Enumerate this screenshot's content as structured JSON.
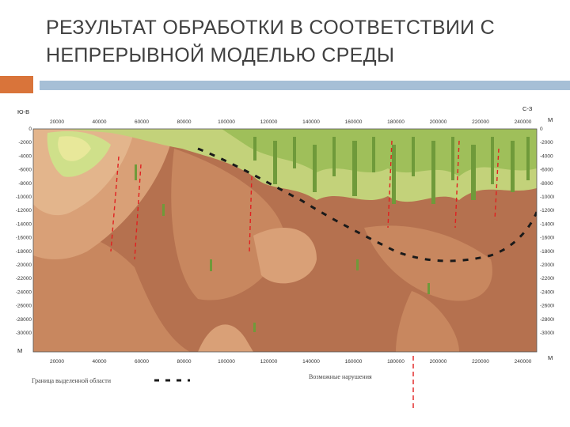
{
  "slide": {
    "title_line1": "РЕЗУЛЬТАТ ОБРАБОТКИ В СООТВЕТСТВИИ С",
    "title_line2": "НЕПРЕРЫВНОЙ МОДЕЛЬЮ СРЕДЫ"
  },
  "section": {
    "left_corner_label": "Ю-В",
    "right_corner_label": "С-З",
    "x_unit": "М",
    "y_unit": "М",
    "x_ticks": [
      "20000",
      "40000",
      "60000",
      "80000",
      "100000",
      "120000",
      "140000",
      "160000",
      "180000",
      "200000",
      "220000",
      "240000"
    ],
    "y_ticks": [
      "0",
      "-2000",
      "-4000",
      "-6000",
      "-8000",
      "-10000",
      "-12000",
      "-14000",
      "-16000",
      "-18000",
      "-20000",
      "-22000",
      "-24000",
      "-26000",
      "-28000",
      "-30000"
    ],
    "legend_boundary": "Граница выделенной области",
    "legend_faults": "Возможные нарушения",
    "colors": {
      "deep": "#b5714f",
      "mid": "#c8875f",
      "light": "#d9a077",
      "pale": "#e3b58c",
      "green_dark": "#6f9a3a",
      "green_mid": "#9fbf5a",
      "green_light": "#cfe08a",
      "yellow": "#e8e89a",
      "boundary": "#1a1a1a",
      "fault": "#e02020"
    }
  }
}
